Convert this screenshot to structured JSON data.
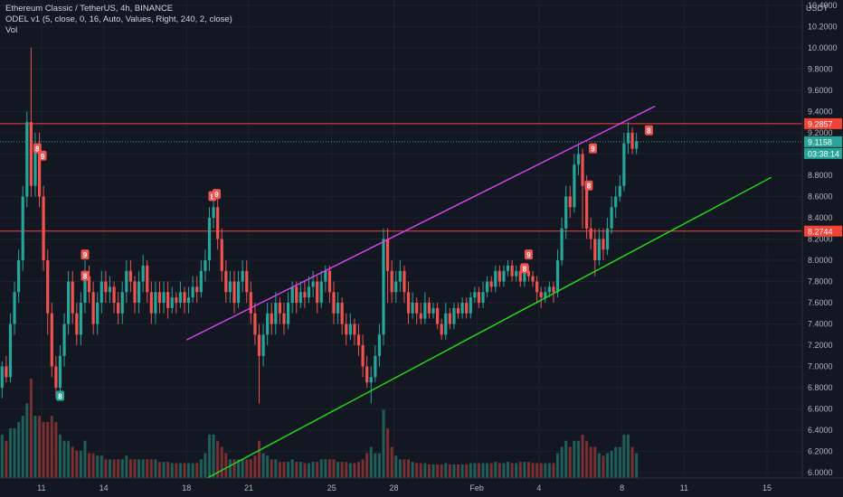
{
  "legend": {
    "title": "Ethereum Classic / TetherUS, 4h, BINANCE",
    "indicator": "ODEL v1 (5, close, 0, 16, Auto, Values, Right, 240, 2, close)",
    "volume": "Vol"
  },
  "colors": {
    "background": "#131722",
    "up": "#26a69a",
    "down": "#ef5350",
    "volume_up": "#1f5f5a",
    "volume_down": "#7a2f31",
    "upper_trendline": "#e040fb",
    "lower_trendline": "#22e01a",
    "resistance": "#f44336",
    "marker": "#ef5350",
    "marker_green": "#26a69a"
  },
  "chart_data": {
    "type": "candlestick",
    "currency": "USDT",
    "y_ticks": [
      "6.0000",
      "6.2000",
      "6.4000",
      "6.6000",
      "6.8000",
      "7.0000",
      "7.2000",
      "7.4000",
      "7.6000",
      "7.8000",
      "8.0000",
      "8.2000",
      "8.4000",
      "8.6000",
      "8.8000",
      "9.0000",
      "9.2000",
      "9.4000",
      "9.6000",
      "9.8000",
      "10.0000",
      "10.2000",
      "10.4000"
    ],
    "ylim": [
      5.95,
      10.45
    ],
    "x_ticks": [
      {
        "label": "11",
        "day": 11
      },
      {
        "label": "14",
        "day": 14
      },
      {
        "label": "18",
        "day": 18
      },
      {
        "label": "21",
        "day": 21
      },
      {
        "label": "25",
        "day": 25
      },
      {
        "label": "28",
        "day": 28
      },
      {
        "label": "Feb",
        "day": 32
      },
      {
        "label": "4",
        "day": 35
      },
      {
        "label": "8",
        "day": 39
      },
      {
        "label": "11",
        "day": 42
      },
      {
        "label": "15",
        "day": 46
      }
    ],
    "xlim": [
      9.0,
      47.7
    ],
    "price_labels": {
      "resistance_high": "9.2857",
      "last_price": "9.1158",
      "countdown": "03:38:14",
      "resistance_low": "8.2744"
    },
    "levels": [
      {
        "name": "resistance-high",
        "price": 9.2857
      },
      {
        "name": "resistance-low",
        "price": 8.2744
      }
    ],
    "last_price": 9.1158,
    "trendlines": [
      {
        "name": "upper-channel",
        "from": [
          18.0,
          7.25
        ],
        "to": [
          40.6,
          9.45
        ]
      },
      {
        "name": "lower-channel",
        "from": [
          19.0,
          5.95
        ],
        "to": [
          46.2,
          8.78
        ]
      }
    ],
    "markers": [
      {
        "label": "8",
        "day": 10.8,
        "price": 9.05
      },
      {
        "label": "9",
        "day": 11.05,
        "price": 8.98
      },
      {
        "label": "8",
        "day": 11.9,
        "price": 6.72
      },
      {
        "label": "9",
        "day": 13.1,
        "price": 8.05
      },
      {
        "label": "8",
        "day": 13.1,
        "price": 7.85
      },
      {
        "label": "8",
        "day": 19.25,
        "price": 8.6
      },
      {
        "label": "9",
        "day": 19.45,
        "price": 8.62
      },
      {
        "label": "9",
        "day": 34.5,
        "price": 8.05
      },
      {
        "label": "8",
        "day": 34.3,
        "price": 7.92
      },
      {
        "label": "8",
        "day": 37.4,
        "price": 8.7
      },
      {
        "label": "9",
        "day": 37.6,
        "price": 9.05
      },
      {
        "label": "8",
        "day": 40.3,
        "price": 9.22
      }
    ],
    "candles": [
      [
        9.1,
        6.8,
        7.0,
        6.7,
        7.05,
        0.35
      ],
      [
        9.3,
        7.0,
        6.9,
        6.85,
        7.1,
        0.3
      ],
      [
        9.5,
        6.9,
        7.4,
        6.85,
        7.5,
        0.4
      ],
      [
        9.7,
        7.4,
        7.7,
        7.3,
        7.8,
        0.4
      ],
      [
        9.9,
        7.7,
        8.0,
        7.6,
        8.1,
        0.45
      ],
      [
        10.1,
        8.0,
        8.6,
        7.9,
        8.7,
        0.5
      ],
      [
        10.3,
        8.6,
        9.3,
        8.5,
        9.4,
        0.6
      ],
      [
        10.5,
        9.3,
        8.7,
        8.6,
        10.0,
        0.8
      ],
      [
        10.7,
        8.7,
        9.1,
        8.6,
        9.2,
        0.5
      ],
      [
        10.9,
        9.1,
        8.6,
        8.5,
        9.2,
        0.5
      ],
      [
        11.1,
        8.6,
        8.0,
        7.9,
        8.7,
        0.45
      ],
      [
        11.3,
        8.0,
        7.5,
        7.3,
        8.1,
        0.45
      ],
      [
        11.5,
        7.5,
        7.0,
        6.9,
        7.6,
        0.5
      ],
      [
        11.7,
        7.0,
        6.8,
        6.7,
        7.1,
        0.45
      ],
      [
        11.9,
        6.8,
        7.1,
        6.75,
        7.2,
        0.35
      ],
      [
        12.1,
        7.1,
        7.4,
        7.0,
        7.5,
        0.3
      ],
      [
        12.3,
        7.4,
        7.8,
        7.3,
        7.9,
        0.3
      ],
      [
        12.5,
        7.8,
        7.5,
        7.4,
        7.9,
        0.25
      ],
      [
        12.7,
        7.5,
        7.3,
        7.2,
        7.6,
        0.22
      ],
      [
        12.9,
        7.3,
        7.6,
        7.2,
        7.7,
        0.22
      ],
      [
        13.1,
        7.6,
        7.85,
        7.5,
        8.0,
        0.3
      ],
      [
        13.3,
        7.85,
        7.7,
        7.6,
        7.95,
        0.2
      ],
      [
        13.5,
        7.7,
        7.4,
        7.3,
        7.8,
        0.2
      ],
      [
        13.7,
        7.4,
        7.6,
        7.3,
        7.7,
        0.18
      ],
      [
        13.9,
        7.6,
        7.8,
        7.5,
        7.9,
        0.18
      ],
      [
        14.1,
        7.8,
        7.7,
        7.6,
        7.9,
        0.15
      ],
      [
        14.3,
        7.7,
        7.75,
        7.6,
        7.85,
        0.15
      ],
      [
        14.5,
        7.75,
        7.6,
        7.5,
        7.8,
        0.15
      ],
      [
        14.7,
        7.6,
        7.5,
        7.4,
        7.7,
        0.15
      ],
      [
        14.9,
        7.5,
        7.7,
        7.4,
        7.8,
        0.15
      ],
      [
        15.1,
        7.7,
        7.9,
        7.6,
        8.0,
        0.18
      ],
      [
        15.3,
        7.9,
        7.8,
        7.7,
        8.0,
        0.15
      ],
      [
        15.5,
        7.8,
        7.6,
        7.5,
        7.85,
        0.15
      ],
      [
        15.7,
        7.6,
        7.8,
        7.5,
        7.9,
        0.15
      ],
      [
        15.9,
        7.8,
        7.95,
        7.7,
        8.05,
        0.15
      ],
      [
        16.1,
        7.95,
        7.7,
        7.6,
        8.0,
        0.15
      ],
      [
        16.3,
        7.7,
        7.5,
        7.4,
        7.8,
        0.15
      ],
      [
        16.5,
        7.5,
        7.7,
        7.4,
        7.8,
        0.15
      ],
      [
        16.7,
        7.7,
        7.6,
        7.5,
        7.8,
        0.13
      ],
      [
        16.9,
        7.6,
        7.7,
        7.5,
        7.8,
        0.13
      ],
      [
        17.1,
        7.7,
        7.55,
        7.45,
        7.8,
        0.13
      ],
      [
        17.3,
        7.55,
        7.65,
        7.5,
        7.75,
        0.12
      ],
      [
        17.5,
        7.65,
        7.6,
        7.5,
        7.7,
        0.12
      ],
      [
        17.7,
        7.6,
        7.7,
        7.55,
        7.8,
        0.12
      ],
      [
        17.9,
        7.7,
        7.6,
        7.5,
        7.75,
        0.12
      ],
      [
        18.1,
        7.6,
        7.65,
        7.5,
        7.75,
        0.12
      ],
      [
        18.3,
        7.65,
        7.75,
        7.6,
        7.85,
        0.12
      ],
      [
        18.5,
        7.75,
        7.7,
        7.6,
        7.85,
        0.12
      ],
      [
        18.7,
        7.7,
        7.9,
        7.65,
        8.0,
        0.15
      ],
      [
        18.9,
        7.9,
        8.0,
        7.8,
        8.1,
        0.2
      ],
      [
        19.1,
        8.0,
        8.4,
        7.9,
        8.5,
        0.35
      ],
      [
        19.3,
        8.4,
        8.5,
        8.3,
        8.6,
        0.35
      ],
      [
        19.5,
        8.5,
        8.2,
        8.1,
        8.6,
        0.3
      ],
      [
        19.7,
        8.2,
        7.9,
        7.8,
        8.3,
        0.25
      ],
      [
        19.9,
        7.9,
        7.7,
        7.6,
        8.0,
        0.2
      ],
      [
        20.1,
        7.7,
        7.8,
        7.6,
        7.9,
        0.15
      ],
      [
        20.3,
        7.8,
        7.6,
        7.5,
        7.9,
        0.15
      ],
      [
        20.5,
        7.6,
        7.8,
        7.55,
        7.9,
        0.15
      ],
      [
        20.7,
        7.8,
        7.9,
        7.7,
        8.0,
        0.15
      ],
      [
        20.9,
        7.9,
        7.7,
        7.6,
        8.0,
        0.15
      ],
      [
        21.1,
        7.7,
        7.5,
        7.4,
        7.8,
        0.15
      ],
      [
        21.3,
        7.5,
        7.3,
        7.2,
        7.6,
        0.18
      ],
      [
        21.5,
        7.3,
        7.1,
        6.65,
        7.4,
        0.3
      ],
      [
        21.7,
        7.1,
        7.3,
        7.0,
        7.4,
        0.2
      ],
      [
        21.9,
        7.3,
        7.5,
        7.2,
        7.6,
        0.18
      ],
      [
        22.1,
        7.5,
        7.4,
        7.3,
        7.6,
        0.15
      ],
      [
        22.3,
        7.4,
        7.6,
        7.3,
        7.7,
        0.15
      ],
      [
        22.5,
        7.6,
        7.5,
        7.4,
        7.65,
        0.13
      ],
      [
        22.7,
        7.5,
        7.4,
        7.3,
        7.6,
        0.13
      ],
      [
        22.9,
        7.4,
        7.6,
        7.35,
        7.7,
        0.13
      ],
      [
        23.1,
        7.6,
        7.75,
        7.5,
        7.8,
        0.15
      ],
      [
        23.3,
        7.75,
        7.6,
        7.5,
        7.8,
        0.13
      ],
      [
        23.5,
        7.6,
        7.7,
        7.55,
        7.8,
        0.13
      ],
      [
        23.7,
        7.7,
        7.65,
        7.55,
        7.8,
        0.12
      ],
      [
        23.9,
        7.65,
        7.75,
        7.6,
        7.85,
        0.12
      ],
      [
        24.1,
        7.75,
        7.8,
        7.65,
        7.9,
        0.13
      ],
      [
        24.3,
        7.8,
        7.6,
        7.5,
        7.85,
        0.13
      ],
      [
        24.5,
        7.6,
        7.8,
        7.55,
        7.9,
        0.15
      ],
      [
        24.7,
        7.8,
        7.9,
        7.7,
        7.95,
        0.15
      ],
      [
        24.9,
        7.9,
        7.7,
        7.6,
        7.95,
        0.15
      ],
      [
        25.1,
        7.7,
        7.5,
        7.4,
        7.8,
        0.15
      ],
      [
        25.3,
        7.5,
        7.6,
        7.4,
        7.7,
        0.13
      ],
      [
        25.5,
        7.6,
        7.4,
        7.3,
        7.65,
        0.13
      ],
      [
        25.7,
        7.4,
        7.3,
        7.2,
        7.5,
        0.13
      ],
      [
        25.9,
        7.3,
        7.4,
        7.25,
        7.5,
        0.12
      ],
      [
        26.1,
        7.4,
        7.3,
        7.2,
        7.45,
        0.12
      ],
      [
        26.3,
        7.3,
        7.2,
        7.1,
        7.4,
        0.13
      ],
      [
        26.5,
        7.2,
        7.0,
        6.9,
        7.3,
        0.15
      ],
      [
        26.7,
        7.0,
        6.85,
        6.8,
        7.1,
        0.2
      ],
      [
        26.9,
        6.85,
        6.9,
        6.65,
        7.0,
        0.25
      ],
      [
        27.1,
        6.9,
        7.1,
        6.85,
        7.2,
        0.2
      ],
      [
        27.3,
        7.1,
        7.3,
        7.0,
        7.4,
        0.2
      ],
      [
        27.5,
        7.3,
        8.2,
        7.2,
        8.3,
        0.55
      ],
      [
        27.7,
        8.2,
        7.9,
        7.6,
        8.3,
        0.4
      ],
      [
        27.9,
        7.9,
        7.7,
        7.6,
        8.0,
        0.25
      ],
      [
        28.1,
        7.7,
        7.8,
        7.6,
        7.9,
        0.18
      ],
      [
        28.3,
        7.8,
        7.9,
        7.7,
        8.0,
        0.15
      ],
      [
        28.5,
        7.9,
        7.7,
        7.6,
        7.95,
        0.15
      ],
      [
        28.7,
        7.7,
        7.5,
        7.4,
        7.8,
        0.15
      ],
      [
        28.9,
        7.5,
        7.6,
        7.45,
        7.7,
        0.13
      ],
      [
        29.1,
        7.6,
        7.5,
        7.4,
        7.65,
        0.12
      ],
      [
        29.3,
        7.5,
        7.45,
        7.4,
        7.6,
        0.12
      ],
      [
        29.5,
        7.45,
        7.6,
        7.4,
        7.7,
        0.12
      ],
      [
        29.7,
        7.6,
        7.5,
        7.45,
        7.65,
        0.11
      ],
      [
        29.9,
        7.5,
        7.55,
        7.45,
        7.6,
        0.11
      ],
      [
        30.1,
        7.55,
        7.4,
        7.35,
        7.6,
        0.11
      ],
      [
        30.3,
        7.4,
        7.3,
        7.25,
        7.45,
        0.11
      ],
      [
        30.5,
        7.3,
        7.5,
        7.25,
        7.6,
        0.12
      ],
      [
        30.7,
        7.5,
        7.4,
        7.35,
        7.55,
        0.11
      ],
      [
        30.9,
        7.4,
        7.55,
        7.35,
        7.6,
        0.11
      ],
      [
        31.1,
        7.55,
        7.5,
        7.45,
        7.6,
        0.11
      ],
      [
        31.3,
        7.5,
        7.6,
        7.45,
        7.65,
        0.11
      ],
      [
        31.5,
        7.6,
        7.5,
        7.45,
        7.65,
        0.11
      ],
      [
        31.7,
        7.5,
        7.65,
        7.45,
        7.7,
        0.12
      ],
      [
        31.9,
        7.65,
        7.7,
        7.6,
        7.75,
        0.12
      ],
      [
        32.1,
        7.7,
        7.6,
        7.55,
        7.75,
        0.12
      ],
      [
        32.3,
        7.6,
        7.7,
        7.55,
        7.8,
        0.12
      ],
      [
        32.5,
        7.7,
        7.8,
        7.65,
        7.85,
        0.12
      ],
      [
        32.7,
        7.8,
        7.75,
        7.7,
        7.85,
        0.12
      ],
      [
        32.9,
        7.75,
        7.9,
        7.7,
        7.95,
        0.13
      ],
      [
        33.1,
        7.9,
        7.8,
        7.75,
        7.95,
        0.12
      ],
      [
        33.3,
        7.8,
        7.9,
        7.75,
        7.95,
        0.12
      ],
      [
        33.5,
        7.9,
        7.95,
        7.85,
        8.0,
        0.13
      ],
      [
        33.7,
        7.95,
        7.85,
        7.8,
        8.0,
        0.12
      ],
      [
        33.9,
        7.85,
        7.9,
        7.8,
        7.95,
        0.12
      ],
      [
        34.1,
        7.9,
        7.8,
        7.75,
        7.95,
        0.13
      ],
      [
        34.3,
        7.8,
        7.9,
        7.75,
        7.95,
        0.13
      ],
      [
        34.5,
        7.9,
        7.85,
        7.8,
        7.95,
        0.13
      ],
      [
        34.7,
        7.85,
        7.8,
        7.75,
        7.9,
        0.12
      ],
      [
        34.9,
        7.8,
        7.7,
        7.6,
        7.85,
        0.12
      ],
      [
        35.1,
        7.7,
        7.65,
        7.55,
        7.75,
        0.12
      ],
      [
        35.3,
        7.65,
        7.7,
        7.6,
        7.75,
        0.12
      ],
      [
        35.5,
        7.7,
        7.75,
        7.65,
        7.8,
        0.12
      ],
      [
        35.7,
        7.75,
        7.7,
        7.6,
        7.8,
        0.12
      ],
      [
        35.9,
        7.7,
        8.0,
        7.65,
        8.1,
        0.2
      ],
      [
        36.1,
        8.0,
        8.3,
        7.95,
        8.4,
        0.25
      ],
      [
        36.3,
        8.3,
        8.6,
        8.2,
        8.7,
        0.3
      ],
      [
        36.5,
        8.6,
        8.5,
        8.4,
        8.7,
        0.25
      ],
      [
        36.7,
        8.5,
        8.9,
        8.45,
        9.0,
        0.3
      ],
      [
        36.9,
        8.9,
        9.0,
        8.8,
        9.1,
        0.3
      ],
      [
        37.1,
        9.0,
        8.7,
        8.3,
        9.05,
        0.35
      ],
      [
        37.3,
        8.7,
        8.3,
        8.2,
        8.8,
        0.3
      ],
      [
        37.5,
        8.3,
        8.2,
        8.1,
        8.4,
        0.25
      ],
      [
        37.7,
        8.2,
        8.0,
        7.85,
        8.3,
        0.25
      ],
      [
        37.9,
        8.0,
        8.2,
        7.95,
        8.3,
        0.2
      ],
      [
        38.1,
        8.2,
        8.1,
        8.0,
        8.3,
        0.18
      ],
      [
        38.3,
        8.1,
        8.3,
        8.05,
        8.4,
        0.2
      ],
      [
        38.5,
        8.3,
        8.5,
        8.25,
        8.6,
        0.22
      ],
      [
        38.7,
        8.5,
        8.6,
        8.4,
        8.7,
        0.25
      ],
      [
        38.9,
        8.6,
        8.7,
        8.55,
        8.8,
        0.25
      ],
      [
        39.1,
        8.7,
        9.1,
        8.65,
        9.2,
        0.35
      ],
      [
        39.3,
        9.1,
        9.2,
        9.0,
        9.3,
        0.35
      ],
      [
        39.5,
        9.2,
        9.05,
        9.0,
        9.25,
        0.25
      ],
      [
        39.7,
        9.05,
        9.12,
        9.0,
        9.2,
        0.2
      ]
    ]
  }
}
